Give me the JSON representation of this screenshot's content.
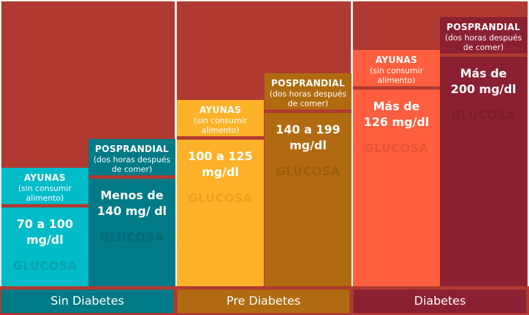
{
  "colors": {
    "background": "#B03A32",
    "sin_fasting": "#00BCC8",
    "sin_post": "#007A86",
    "pre_fasting": "#FDB22A",
    "pre_post": "#B06A10",
    "dia_fasting": "#FF5F3F",
    "dia_post": "#8B2033"
  },
  "columns": [
    {
      "title": "AYUNAS",
      "subtitle": "(sin consumir alimento)",
      "value1": "70 a 100",
      "value2": "mg/dl",
      "watermark": "GLUCOSA"
    },
    {
      "title": "POSPRANDIAL",
      "subtitle": "(dos horas después de comer)",
      "value1": "Menos de",
      "value2": "140 mg/ dl",
      "watermark": "GLUCOSA"
    },
    {
      "title": "AYUNAS",
      "subtitle": "(sin consumir alimento)",
      "value1": "100 a 125",
      "value2": "mg/dl",
      "watermark": "GLUCOSA"
    },
    {
      "title": "POSPRANDIAL",
      "subtitle": "(dos horas después de comer)",
      "value1": "140 a 199",
      "value2": "mg/dl",
      "watermark": "GLUCOSA"
    },
    {
      "title": "AYUNAS",
      "subtitle": "(sin consumir alimento)",
      "value1": "Más de",
      "value2": "126 mg/dl",
      "watermark": "GLUCOSA"
    },
    {
      "title": "POSPRANDIAL",
      "subtitle": "(dos horas después de comer)",
      "value1": "Más de",
      "value2": "200 mg/dl",
      "watermark": "GLUCOSA"
    }
  ],
  "categories": [
    "Sin Diabetes",
    "Pre Diabetes",
    "Diabetes"
  ]
}
